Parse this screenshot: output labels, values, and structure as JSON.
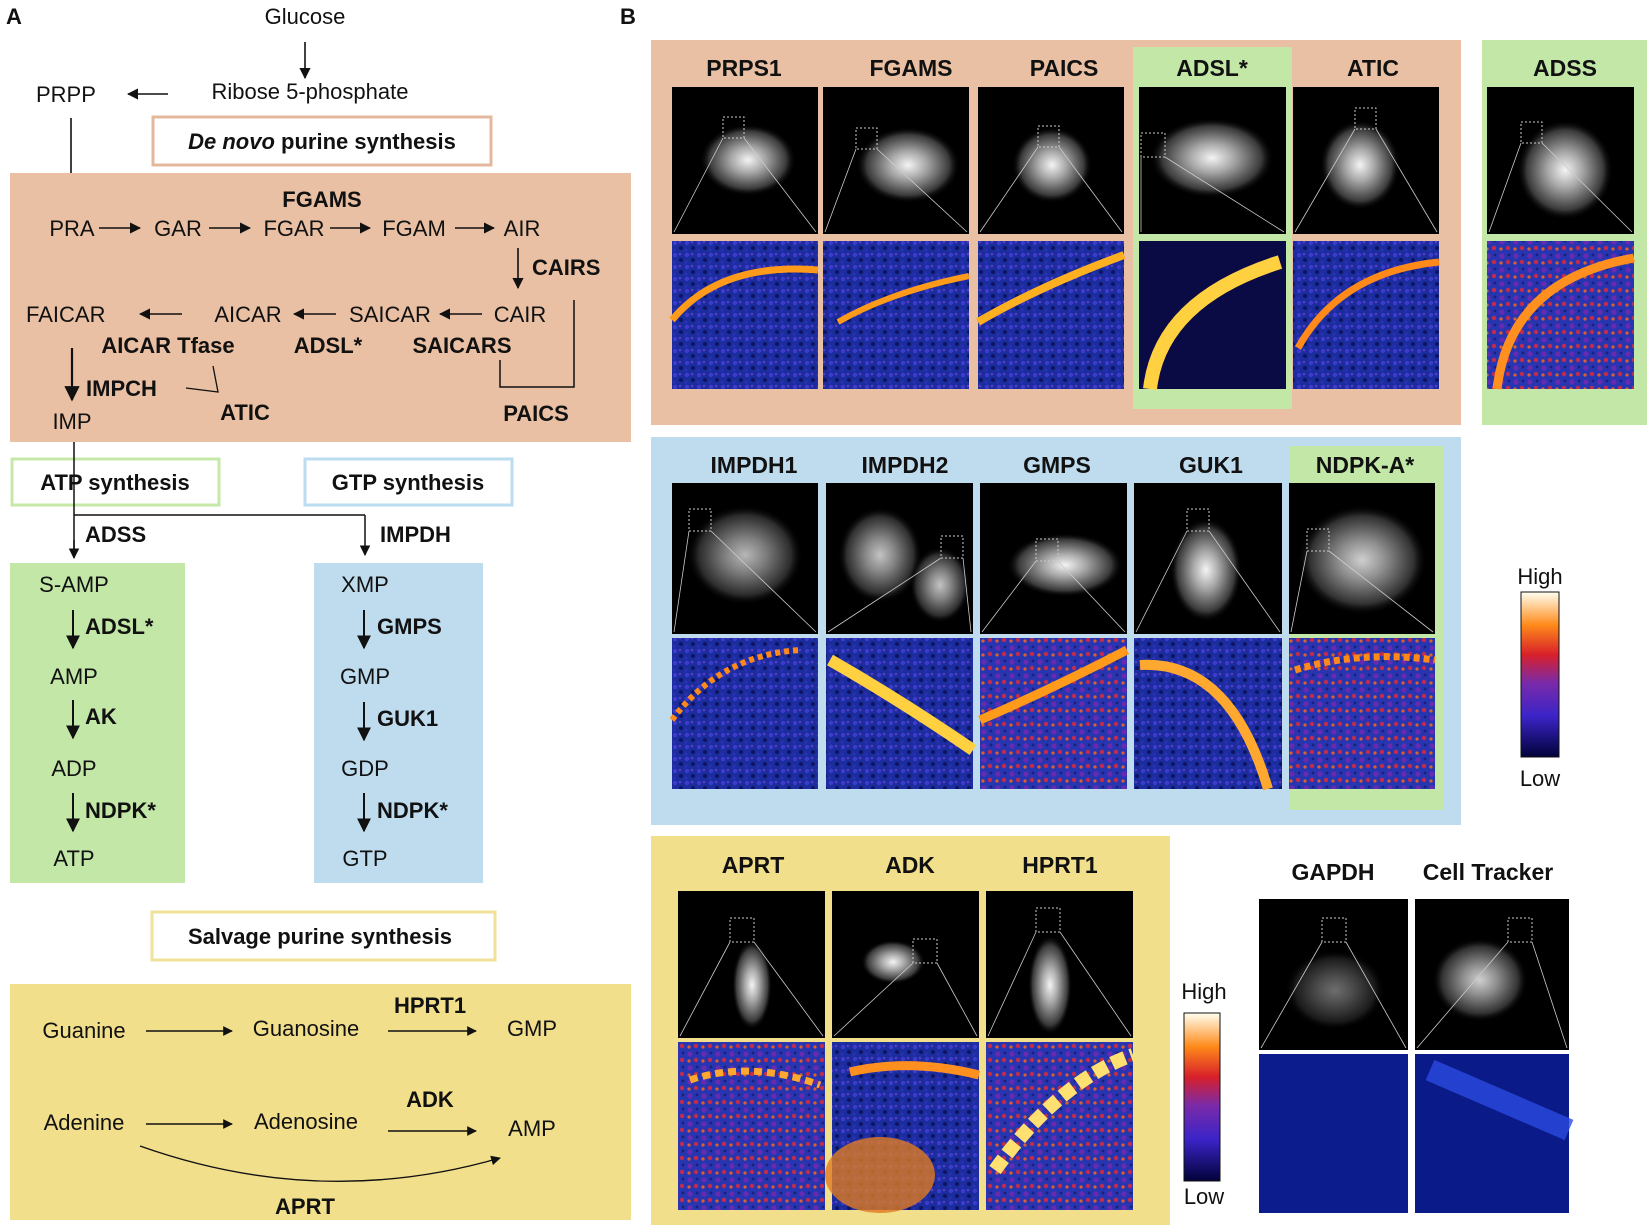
{
  "panel_a": {
    "letter": "A",
    "top": {
      "glucose": "Glucose",
      "ribose": "Ribose 5-phosphate",
      "prpp": "PRPP"
    },
    "de_novo_label": {
      "italic": "De novo",
      "rest": " purine synthesis"
    },
    "denovo": {
      "fgams": "FGAMS",
      "row1": [
        "PRA",
        "GAR",
        "FGAR",
        "FGAM",
        "AIR"
      ],
      "cairs": "CAIRS",
      "row2": [
        "FAICAR",
        "AICAR",
        "SAICAR",
        "CAIR"
      ],
      "aicar_tfase": "AICAR Tfase",
      "adsl": "ADSL*",
      "saicars": "SAICARS",
      "impch": "IMPCH",
      "atic": "ATIC",
      "paics": "PAICS",
      "imp": "IMP"
    },
    "atp_synthesis": "ATP synthesis",
    "gtp_synthesis": "GTP synthesis",
    "atp_branch": {
      "enzyme_top": "ADSS",
      "metabolites": [
        "S-AMP",
        "AMP",
        "ADP",
        "ATP"
      ],
      "enzymes": [
        "ADSL*",
        "AK",
        "NDPK*"
      ]
    },
    "gtp_branch": {
      "enzyme_top": "IMPDH",
      "metabolites": [
        "XMP",
        "GMP",
        "GDP",
        "GTP"
      ],
      "enzymes": [
        "GMPS",
        "GUK1",
        "NDPK*"
      ]
    },
    "salvage_label": "Salvage purine synthesis",
    "salvage": {
      "guanine": "Guanine",
      "guanosine": "Guanosine",
      "hprt1": "HPRT1",
      "gmp": "GMP",
      "adenine": "Adenine",
      "adenosine": "Adenosine",
      "adk": "ADK",
      "amp": "AMP",
      "aprt": "APRT"
    }
  },
  "panel_b": {
    "letter": "B",
    "group1": [
      "PRPS1",
      "FGAMS",
      "PAICS",
      "ADSL*",
      "ATIC"
    ],
    "adss": "ADSS",
    "group2": [
      "IMPDH1",
      "IMPDH2",
      "GMPS",
      "GUK1",
      "NDPK-A*"
    ],
    "group3": [
      "APRT",
      "ADK",
      "HPRT1"
    ],
    "controls": [
      "GAPDH",
      "Cell Tracker"
    ],
    "colorbar": {
      "high": "High",
      "low": "Low"
    }
  },
  "colors": {
    "denovo_bg": "#e9c0a3",
    "atp_bg": "#c3e7a7",
    "gtp_bg": "#bfdcef",
    "salvage_bg": "#f2df8c",
    "denovo_border": "#e4b89c",
    "atp_border": "#c7e9a8",
    "gtp_border": "#bcdcf0",
    "salvage_border": "#f1e29a"
  }
}
